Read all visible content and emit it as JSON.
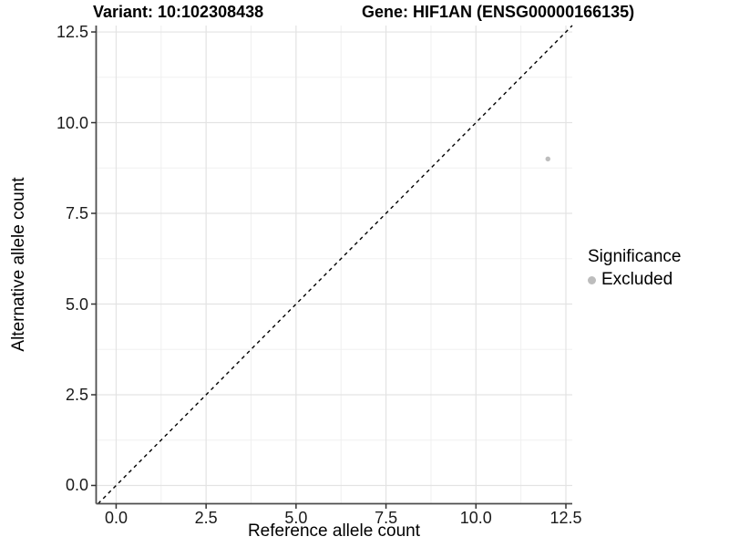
{
  "chart_data": {
    "type": "scatter",
    "titles": {
      "variant": "Variant: 10:102308438",
      "gene": "Gene: HIF1AN (ENSG00000166135)"
    },
    "xlabel": "Reference allele count",
    "ylabel": "Alternative allele count",
    "x_ticks": {
      "values": [
        0,
        2.5,
        5,
        7.5,
        10,
        12.5
      ],
      "labels": [
        "0.0",
        "2.5",
        "5.0",
        "7.5",
        "10.0",
        "12.5"
      ]
    },
    "y_ticks": {
      "values": [
        0,
        2.5,
        5,
        7.5,
        10,
        12.5
      ],
      "labels": [
        "0.0",
        "2.5",
        "5.0",
        "7.5",
        "10.0",
        "12.5"
      ]
    },
    "xlim": [
      -0.556,
      12.677
    ],
    "ylim": [
      -0.503,
      12.677
    ],
    "grid": {
      "major": true,
      "minor": true
    },
    "reference_line": {
      "type": "identity",
      "slope": 1,
      "intercept": 0,
      "style": "dashed",
      "color": "#000000"
    },
    "points": [
      {
        "x": 12,
        "y": 9,
        "series": "Excluded"
      }
    ],
    "legend": {
      "title": "Significance",
      "position": "right",
      "entries": [
        {
          "label": "Excluded",
          "color": "#bdbdbd"
        }
      ]
    },
    "colors": {
      "point": "#bdbdbd",
      "grid_major": "#e3e3e3",
      "grid_minor": "#f0f0f0",
      "axis_line": "#4d4d4d",
      "tick_mark": "#333333",
      "background": "#ffffff"
    }
  }
}
